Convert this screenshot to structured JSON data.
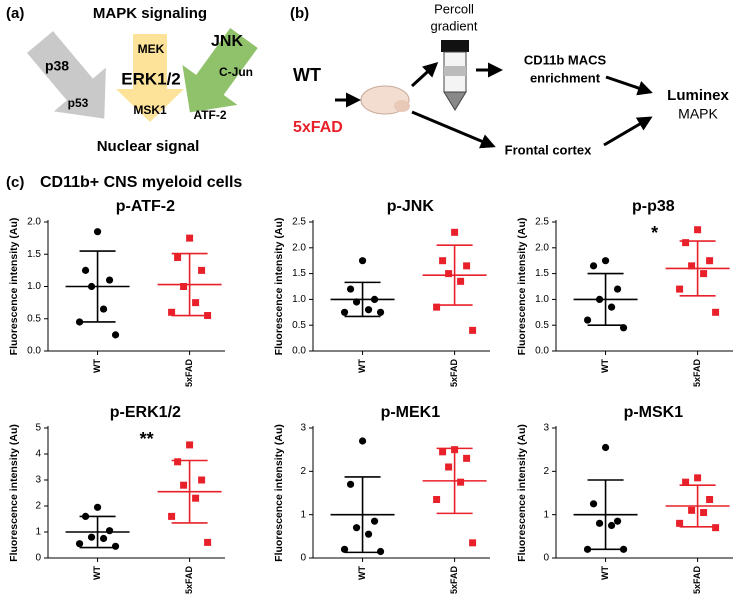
{
  "panel_a": {
    "label": "(a)",
    "title": "MAPK signaling",
    "footer": "Nuclear signal",
    "p38": {
      "top": "p38",
      "bottom": "p53"
    },
    "erk": {
      "top": "MEK",
      "middle": "ERK1/2",
      "bottom": "MSK1"
    },
    "jnk": {
      "top": "JNK",
      "middle": "C-Jun",
      "bottom": "ATF-2"
    }
  },
  "panel_b": {
    "label": "(b)",
    "wt": "WT",
    "fad": "5xFAD",
    "percoll": [
      "Percoll",
      "gradient"
    ],
    "macs": [
      "CD11b MACS",
      "enrichment"
    ],
    "cortex": "Frontal cortex",
    "luminex": [
      "Luminex",
      "MAPK"
    ]
  },
  "panel_c": {
    "label": "(c)",
    "title": "CD11b+ CNS myeloid cells"
  },
  "chart_data": [
    {
      "type": "scatter",
      "title": "p-ATF-2",
      "ylabel": "Fluorescence intensity (Au)",
      "categories": [
        "WT",
        "5xFAD"
      ],
      "ylim": [
        0,
        2
      ],
      "yticks": [
        {
          "value": 0,
          "label": "0.0"
        },
        0.5,
        {
          "value": 1,
          "label": "1.0"
        },
        1.5,
        {
          "value": 2,
          "label": "2.0"
        }
      ],
      "series": [
        {
          "color": "#000000",
          "marker": "circle",
          "values": [
            1.85,
            1.25,
            1.1,
            1.0,
            0.65,
            0.45,
            0.25
          ],
          "mean": 1.0,
          "sd": 0.55
        },
        {
          "color": "#e8202a",
          "marker": "square",
          "values": [
            1.75,
            1.45,
            1.25,
            1.0,
            0.75,
            0.6,
            0.55
          ],
          "mean": 1.03,
          "sd": 0.48
        }
      ]
    },
    {
      "type": "scatter",
      "title": "p-JNK",
      "ylabel": "Fluorescence intensity (Au)",
      "categories": [
        "WT",
        "5xFAD"
      ],
      "ylim": [
        0,
        2.5
      ],
      "yticks": [
        {
          "value": 0,
          "label": "0.0"
        },
        0.5,
        {
          "value": 1,
          "label": "1.0"
        },
        1.5,
        {
          "value": 2,
          "label": "2.0"
        },
        2.5
      ],
      "series": [
        {
          "color": "#000000",
          "marker": "circle",
          "values": [
            1.75,
            1.2,
            1.0,
            0.95,
            0.8,
            0.75,
            0.75
          ],
          "mean": 1.0,
          "sd": 0.33
        },
        {
          "color": "#e8202a",
          "marker": "square",
          "values": [
            2.3,
            1.75,
            1.65,
            1.5,
            1.35,
            0.85,
            0.4
          ],
          "mean": 1.47,
          "sd": 0.58
        }
      ]
    },
    {
      "type": "scatter",
      "title": "p-p38",
      "ylabel": "Fluorescence intensity (Au)",
      "categories": [
        "WT",
        "5xFAD"
      ],
      "ylim": [
        0,
        2.5
      ],
      "yticks": [
        {
          "value": 0,
          "label": "0.0"
        },
        0.5,
        {
          "value": 1,
          "label": "1.0"
        },
        1.5,
        {
          "value": 2,
          "label": "2.0"
        },
        2.5
      ],
      "annotation": "*",
      "series": [
        {
          "color": "#000000",
          "marker": "circle",
          "values": [
            1.75,
            1.65,
            1.2,
            1.0,
            0.85,
            0.6,
            0.45
          ],
          "mean": 1.0,
          "sd": 0.5
        },
        {
          "color": "#e8202a",
          "marker": "square",
          "values": [
            2.35,
            2.1,
            1.75,
            1.65,
            1.5,
            1.2,
            0.75
          ],
          "mean": 1.6,
          "sd": 0.53
        }
      ]
    },
    {
      "type": "scatter",
      "title": "p-ERK1/2",
      "ylabel": "Fluorescence intensity (Au)",
      "categories": [
        "WT",
        "5xFAD"
      ],
      "ylim": [
        0,
        5
      ],
      "yticks": [
        0,
        1,
        2,
        3,
        4,
        5
      ],
      "annotation": "**",
      "series": [
        {
          "color": "#000000",
          "marker": "circle",
          "values": [
            1.95,
            1.6,
            1.05,
            0.8,
            0.75,
            0.55,
            0.45
          ],
          "mean": 1.0,
          "sd": 0.6
        },
        {
          "color": "#e8202a",
          "marker": "square",
          "values": [
            4.35,
            3.7,
            3.0,
            2.8,
            2.3,
            1.6,
            0.6
          ],
          "mean": 2.55,
          "sd": 1.2
        }
      ]
    },
    {
      "type": "scatter",
      "title": "p-MEK1",
      "ylabel": "Fluorescence intensity (Au)",
      "categories": [
        "WT",
        "5xFAD"
      ],
      "ylim": [
        0,
        3
      ],
      "yticks": [
        0,
        1,
        2,
        3
      ],
      "series": [
        {
          "color": "#000000",
          "marker": "circle",
          "values": [
            2.7,
            1.7,
            0.85,
            0.7,
            0.55,
            0.2,
            0.15
          ],
          "mean": 1.0,
          "sd": 0.87
        },
        {
          "color": "#e8202a",
          "marker": "square",
          "values": [
            2.5,
            2.45,
            2.3,
            2.1,
            1.75,
            1.35,
            0.35
          ],
          "mean": 1.78,
          "sd": 0.75
        }
      ]
    },
    {
      "type": "scatter",
      "title": "p-MSK1",
      "ylabel": "Fluorescence intensity (Au)",
      "categories": [
        "WT",
        "5xFAD"
      ],
      "ylim": [
        0,
        3
      ],
      "yticks": [
        0,
        1,
        2,
        3
      ],
      "series": [
        {
          "color": "#000000",
          "marker": "circle",
          "values": [
            2.55,
            1.25,
            0.85,
            0.8,
            0.75,
            0.2,
            0.2
          ],
          "mean": 1.0,
          "sd": 0.8
        },
        {
          "color": "#e8202a",
          "marker": "square",
          "values": [
            1.85,
            1.75,
            1.35,
            1.1,
            1.05,
            0.8,
            0.7
          ],
          "mean": 1.2,
          "sd": 0.48
        }
      ]
    }
  ]
}
